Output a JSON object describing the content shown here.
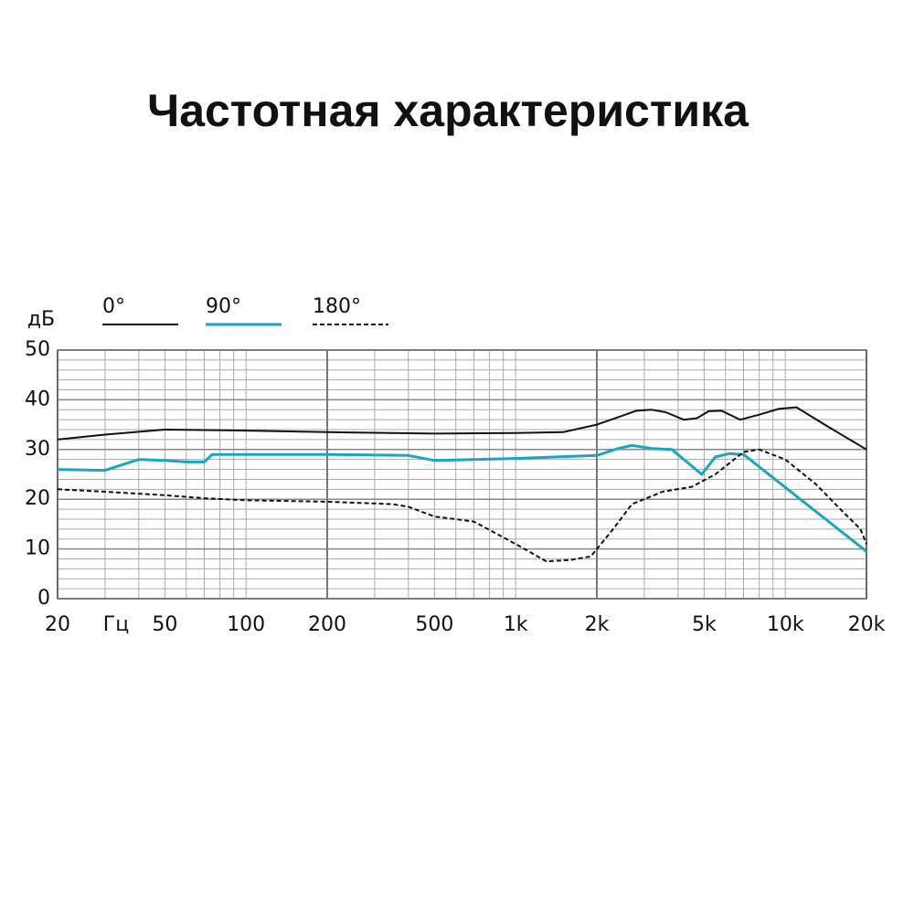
{
  "chart_data": {
    "type": "line",
    "title": "Частотная характеристика",
    "y_label": "дБ",
    "x_unit": "Гц",
    "xscale": "log",
    "xlim": [
      20,
      20000
    ],
    "ylim": [
      0,
      50
    ],
    "xticks": [
      20,
      50,
      100,
      200,
      500,
      {
        "value": 1000,
        "label": "1k"
      },
      {
        "value": 2000,
        "label": "2k"
      },
      {
        "value": 5000,
        "label": "5k"
      },
      {
        "value": 10000,
        "label": "10k"
      },
      {
        "value": 20000,
        "label": "20k"
      }
    ],
    "yticks": [
      0,
      10,
      20,
      30,
      40,
      50
    ],
    "xgrid": [
      30,
      40,
      50,
      60,
      70,
      80,
      90,
      100,
      300,
      400,
      500,
      600,
      700,
      800,
      900,
      1000,
      3000,
      4000,
      5000,
      6000,
      7000,
      8000,
      9000,
      10000
    ],
    "xgrid_major": [
      20,
      200,
      2000,
      20000
    ],
    "ygrid": [
      2,
      4,
      6,
      8,
      12,
      14,
      16,
      18,
      22,
      24,
      26,
      28,
      32,
      34,
      36,
      38,
      42,
      44,
      46,
      48
    ],
    "series": [
      {
        "name": "0°",
        "color": "#111111",
        "dashed": false,
        "x": [
          20,
          30,
          50,
          100,
          200,
          500,
          1000,
          1500,
          2000,
          2400,
          2800,
          3200,
          3600,
          4200,
          4700,
          5200,
          5800,
          6800,
          8000,
          9500,
          11000,
          14000,
          20000
        ],
        "values": [
          32,
          33,
          34,
          33.8,
          33.5,
          33.2,
          33.3,
          33.5,
          35,
          36.5,
          37.8,
          38,
          37.5,
          36,
          36.3,
          37.7,
          37.8,
          36,
          37,
          38.2,
          38.5,
          35,
          30
        ]
      },
      {
        "name": "90°",
        "color": "#1aa6c0",
        "dashed": false,
        "x": [
          20,
          30,
          40,
          50,
          60,
          70,
          75,
          100,
          200,
          400,
          500,
          1000,
          2000,
          2400,
          2700,
          3200,
          3800,
          4900,
          5500,
          6200,
          7000,
          20000
        ],
        "values": [
          26,
          25.8,
          28,
          27.8,
          27.5,
          27.5,
          29,
          29,
          29,
          28.8,
          27.8,
          28.2,
          28.8,
          30.2,
          30.8,
          30.2,
          30,
          25,
          28.5,
          29.2,
          29,
          9.5
        ]
      },
      {
        "name": "180°",
        "color": "#111111",
        "dashed": true,
        "x": [
          20,
          30,
          50,
          70,
          100,
          200,
          350,
          400,
          500,
          600,
          700,
          1000,
          1300,
          1600,
          1900,
          2300,
          2700,
          3500,
          4500,
          5500,
          7000,
          8000,
          10000,
          13000,
          16000,
          19000,
          20000
        ],
        "values": [
          22,
          21.5,
          20.8,
          20.2,
          19.8,
          19.5,
          19,
          18.5,
          16.5,
          16,
          15.5,
          11,
          7.5,
          7.8,
          8.5,
          14,
          19,
          21.5,
          22.5,
          25,
          29.5,
          30,
          28,
          23,
          18,
          14,
          11
        ]
      }
    ]
  }
}
